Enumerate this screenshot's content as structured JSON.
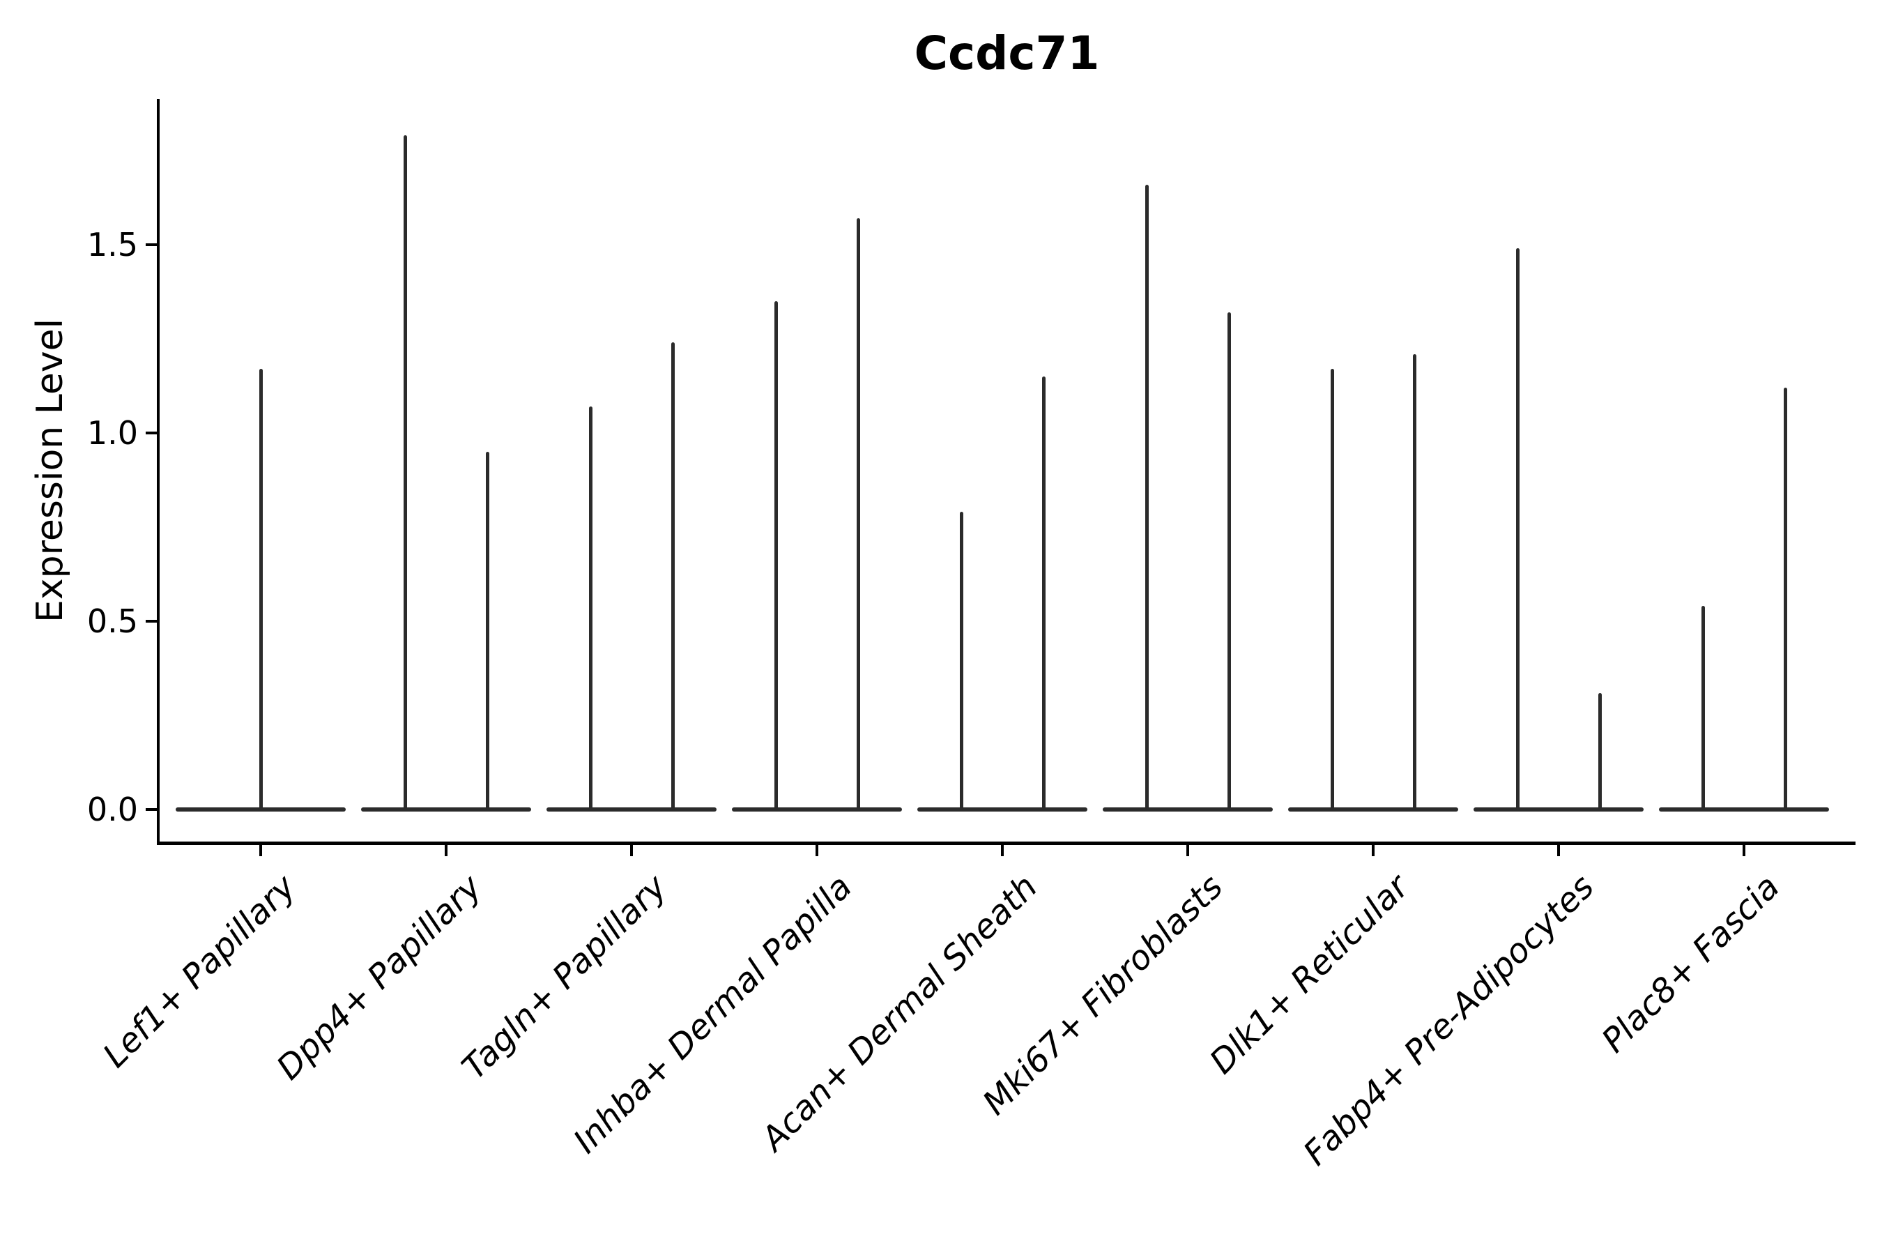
{
  "chart_data": {
    "type": "violin",
    "title": "Ccdc71",
    "xlabel": "",
    "ylabel": "Expression Level",
    "ylim": [
      -0.09,
      1.89
    ],
    "yticks": [
      0.0,
      0.5,
      1.0,
      1.5
    ],
    "ytick_labels": [
      "0.0",
      "0.5",
      "1.0",
      "1.5"
    ],
    "grid": false,
    "legend": false,
    "background": "#ffffff",
    "stroke_color": "#2b2b2b",
    "spine_color": "#000000",
    "text_color": "#000000",
    "style_note": "Needle-thin violins: expression mass concentrated at 0 (flat wide base) with a thin density spike rising to the max expression value; first category has a single centered violin, all others have two violins side by side",
    "categories": [
      "Lef1+ Papillary",
      "Dpp4+ Papillary",
      "Tagln+ Papillary",
      "Inhba+ Dermal Papilla",
      "Acan+ Dermal Sheath",
      "Mki67+ Fibroblasts",
      "Dlk1+ Reticular",
      "Fabp4+ Pre-Adipocytes",
      "Plac8+ Fascia"
    ],
    "violins": [
      {
        "category": "Lef1+ Papillary",
        "baseline_value": 0,
        "max_values": [
          1.17
        ]
      },
      {
        "category": "Dpp4+ Papillary",
        "baseline_value": 0,
        "max_values": [
          1.79,
          0.95
        ]
      },
      {
        "category": "Tagln+ Papillary",
        "baseline_value": 0,
        "max_values": [
          1.07,
          1.24
        ]
      },
      {
        "category": "Inhba+ Dermal Papilla",
        "baseline_value": 0,
        "max_values": [
          1.35,
          1.57
        ]
      },
      {
        "category": "Acan+ Dermal Sheath",
        "baseline_value": 0,
        "max_values": [
          0.79,
          1.15
        ]
      },
      {
        "category": "Mki67+ Fibroblasts",
        "baseline_value": 0,
        "max_values": [
          1.66,
          1.32
        ]
      },
      {
        "category": "Dlk1+ Reticular",
        "baseline_value": 0,
        "max_values": [
          1.17,
          1.21
        ]
      },
      {
        "category": "Fabp4+ Pre-Adipocytes",
        "baseline_value": 0,
        "max_values": [
          1.49,
          0.31
        ]
      },
      {
        "category": "Plac8+ Fascia",
        "baseline_value": 0,
        "max_values": [
          0.54,
          1.12
        ]
      }
    ]
  }
}
